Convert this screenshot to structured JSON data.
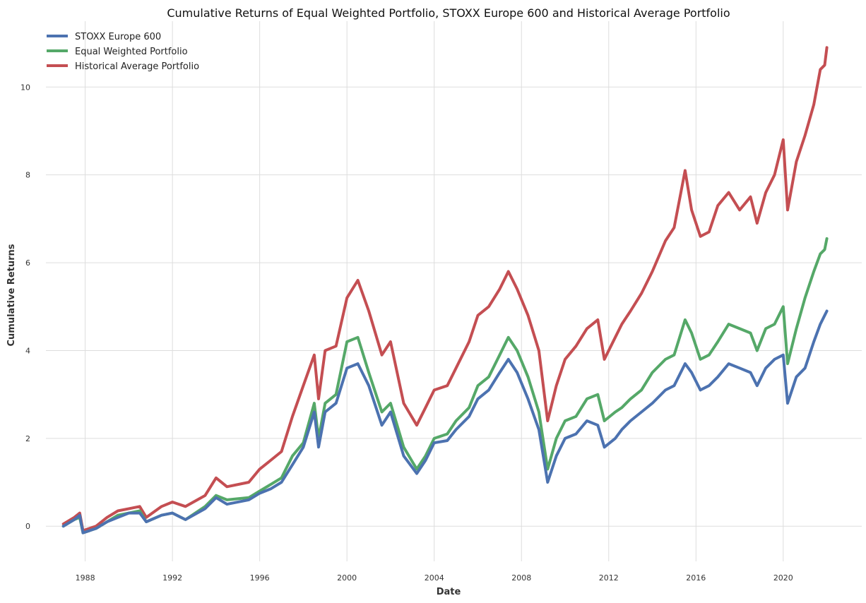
{
  "chart_data": {
    "type": "line",
    "title": "Cumulative Returns of Equal Weighted Portfolio, STOXX Europe 600 and Historical Average Portfolio",
    "xlabel": "Date",
    "ylabel": "Cumulative Returns",
    "xlim": [
      1986.2,
      2023.6
    ],
    "ylim": [
      -0.8,
      11.5
    ],
    "x_ticks": [
      1988,
      1992,
      1996,
      2000,
      2004,
      2008,
      2012,
      2016,
      2020
    ],
    "y_ticks": [
      0,
      2,
      4,
      6,
      8,
      10
    ],
    "grid": true,
    "legend_position": "top-left",
    "series": [
      {
        "name": "STOXX Europe 600",
        "color": "#4c72b0",
        "points": [
          [
            1987.0,
            0.0
          ],
          [
            1987.5,
            0.15
          ],
          [
            1987.75,
            0.25
          ],
          [
            1987.9,
            -0.15
          ],
          [
            1988.5,
            -0.05
          ],
          [
            1989.0,
            0.1
          ],
          [
            1989.5,
            0.2
          ],
          [
            1990.0,
            0.3
          ],
          [
            1990.5,
            0.3
          ],
          [
            1990.8,
            0.1
          ],
          [
            1991.5,
            0.25
          ],
          [
            1992.0,
            0.3
          ],
          [
            1992.6,
            0.15
          ],
          [
            1993.5,
            0.4
          ],
          [
            1994.0,
            0.65
          ],
          [
            1994.5,
            0.5
          ],
          [
            1995.5,
            0.6
          ],
          [
            1996.0,
            0.75
          ],
          [
            1996.5,
            0.85
          ],
          [
            1997.0,
            1.0
          ],
          [
            1997.5,
            1.4
          ],
          [
            1998.0,
            1.8
          ],
          [
            1998.5,
            2.6
          ],
          [
            1998.7,
            1.8
          ],
          [
            1999.0,
            2.6
          ],
          [
            1999.5,
            2.8
          ],
          [
            2000.0,
            3.6
          ],
          [
            2000.5,
            3.7
          ],
          [
            2001.0,
            3.2
          ],
          [
            2001.6,
            2.3
          ],
          [
            2002.0,
            2.6
          ],
          [
            2002.6,
            1.6
          ],
          [
            2003.2,
            1.2
          ],
          [
            2003.6,
            1.5
          ],
          [
            2004.0,
            1.9
          ],
          [
            2004.6,
            1.95
          ],
          [
            2005.0,
            2.2
          ],
          [
            2005.6,
            2.5
          ],
          [
            2006.0,
            2.9
          ],
          [
            2006.5,
            3.1
          ],
          [
            2007.0,
            3.5
          ],
          [
            2007.4,
            3.8
          ],
          [
            2007.8,
            3.5
          ],
          [
            2008.3,
            2.9
          ],
          [
            2008.8,
            2.2
          ],
          [
            2009.2,
            1.0
          ],
          [
            2009.6,
            1.6
          ],
          [
            2010.0,
            2.0
          ],
          [
            2010.5,
            2.1
          ],
          [
            2011.0,
            2.4
          ],
          [
            2011.5,
            2.3
          ],
          [
            2011.8,
            1.8
          ],
          [
            2012.3,
            2.0
          ],
          [
            2012.6,
            2.2
          ],
          [
            2013.0,
            2.4
          ],
          [
            2013.5,
            2.6
          ],
          [
            2014.0,
            2.8
          ],
          [
            2014.6,
            3.1
          ],
          [
            2015.0,
            3.2
          ],
          [
            2015.5,
            3.7
          ],
          [
            2015.8,
            3.5
          ],
          [
            2016.2,
            3.1
          ],
          [
            2016.6,
            3.2
          ],
          [
            2017.0,
            3.4
          ],
          [
            2017.5,
            3.7
          ],
          [
            2018.0,
            3.6
          ],
          [
            2018.5,
            3.5
          ],
          [
            2018.8,
            3.2
          ],
          [
            2019.2,
            3.6
          ],
          [
            2019.6,
            3.8
          ],
          [
            2020.0,
            3.9
          ],
          [
            2020.2,
            2.8
          ],
          [
            2020.6,
            3.4
          ],
          [
            2021.0,
            3.6
          ],
          [
            2021.4,
            4.2
          ],
          [
            2021.7,
            4.6
          ],
          [
            2021.9,
            4.8
          ],
          [
            2022.0,
            4.9
          ]
        ]
      },
      {
        "name": "Equal Weighted Portfolio",
        "color": "#55a868",
        "points": [
          [
            1987.0,
            0.0
          ],
          [
            1987.5,
            0.15
          ],
          [
            1987.75,
            0.2
          ],
          [
            1987.9,
            -0.15
          ],
          [
            1988.5,
            -0.05
          ],
          [
            1989.0,
            0.1
          ],
          [
            1989.5,
            0.25
          ],
          [
            1990.0,
            0.3
          ],
          [
            1990.5,
            0.35
          ],
          [
            1990.8,
            0.1
          ],
          [
            1991.5,
            0.25
          ],
          [
            1992.0,
            0.3
          ],
          [
            1992.6,
            0.15
          ],
          [
            1993.5,
            0.45
          ],
          [
            1994.0,
            0.7
          ],
          [
            1994.5,
            0.6
          ],
          [
            1995.5,
            0.65
          ],
          [
            1996.0,
            0.8
          ],
          [
            1996.5,
            0.95
          ],
          [
            1997.0,
            1.1
          ],
          [
            1997.5,
            1.6
          ],
          [
            1998.0,
            1.9
          ],
          [
            1998.5,
            2.8
          ],
          [
            1998.7,
            2.0
          ],
          [
            1999.0,
            2.8
          ],
          [
            1999.5,
            3.0
          ],
          [
            2000.0,
            4.2
          ],
          [
            2000.5,
            4.3
          ],
          [
            2001.0,
            3.5
          ],
          [
            2001.6,
            2.6
          ],
          [
            2002.0,
            2.8
          ],
          [
            2002.6,
            1.8
          ],
          [
            2003.2,
            1.3
          ],
          [
            2003.6,
            1.6
          ],
          [
            2004.0,
            2.0
          ],
          [
            2004.6,
            2.1
          ],
          [
            2005.0,
            2.4
          ],
          [
            2005.6,
            2.7
          ],
          [
            2006.0,
            3.2
          ],
          [
            2006.5,
            3.4
          ],
          [
            2007.0,
            3.9
          ],
          [
            2007.4,
            4.3
          ],
          [
            2007.8,
            4.0
          ],
          [
            2008.3,
            3.4
          ],
          [
            2008.8,
            2.6
          ],
          [
            2009.2,
            1.3
          ],
          [
            2009.6,
            2.0
          ],
          [
            2010.0,
            2.4
          ],
          [
            2010.5,
            2.5
          ],
          [
            2011.0,
            2.9
          ],
          [
            2011.5,
            3.0
          ],
          [
            2011.8,
            2.4
          ],
          [
            2012.3,
            2.6
          ],
          [
            2012.6,
            2.7
          ],
          [
            2013.0,
            2.9
          ],
          [
            2013.5,
            3.1
          ],
          [
            2014.0,
            3.5
          ],
          [
            2014.6,
            3.8
          ],
          [
            2015.0,
            3.9
          ],
          [
            2015.5,
            4.7
          ],
          [
            2015.8,
            4.4
          ],
          [
            2016.2,
            3.8
          ],
          [
            2016.6,
            3.9
          ],
          [
            2017.0,
            4.2
          ],
          [
            2017.5,
            4.6
          ],
          [
            2018.0,
            4.5
          ],
          [
            2018.5,
            4.4
          ],
          [
            2018.8,
            4.0
          ],
          [
            2019.2,
            4.5
          ],
          [
            2019.6,
            4.6
          ],
          [
            2020.0,
            5.0
          ],
          [
            2020.2,
            3.7
          ],
          [
            2020.6,
            4.5
          ],
          [
            2021.0,
            5.2
          ],
          [
            2021.4,
            5.8
          ],
          [
            2021.7,
            6.2
          ],
          [
            2021.9,
            6.3
          ],
          [
            2022.0,
            6.55
          ]
        ]
      },
      {
        "name": "Historical Average Portfolio",
        "color": "#c44e52",
        "points": [
          [
            1987.0,
            0.05
          ],
          [
            1987.5,
            0.2
          ],
          [
            1987.75,
            0.3
          ],
          [
            1987.9,
            -0.1
          ],
          [
            1988.5,
            0.0
          ],
          [
            1989.0,
            0.2
          ],
          [
            1989.5,
            0.35
          ],
          [
            1990.0,
            0.4
          ],
          [
            1990.5,
            0.45
          ],
          [
            1990.8,
            0.2
          ],
          [
            1991.5,
            0.45
          ],
          [
            1992.0,
            0.55
          ],
          [
            1992.6,
            0.45
          ],
          [
            1993.5,
            0.7
          ],
          [
            1994.0,
            1.1
          ],
          [
            1994.5,
            0.9
          ],
          [
            1995.5,
            1.0
          ],
          [
            1996.0,
            1.3
          ],
          [
            1996.5,
            1.5
          ],
          [
            1997.0,
            1.7
          ],
          [
            1997.5,
            2.5
          ],
          [
            1998.0,
            3.2
          ],
          [
            1998.5,
            3.9
          ],
          [
            1998.7,
            2.9
          ],
          [
            1999.0,
            4.0
          ],
          [
            1999.5,
            4.1
          ],
          [
            2000.0,
            5.2
          ],
          [
            2000.5,
            5.6
          ],
          [
            2001.0,
            4.9
          ],
          [
            2001.6,
            3.9
          ],
          [
            2002.0,
            4.2
          ],
          [
            2002.6,
            2.8
          ],
          [
            2003.2,
            2.3
          ],
          [
            2003.6,
            2.7
          ],
          [
            2004.0,
            3.1
          ],
          [
            2004.6,
            3.2
          ],
          [
            2005.0,
            3.6
          ],
          [
            2005.6,
            4.2
          ],
          [
            2006.0,
            4.8
          ],
          [
            2006.5,
            5.0
          ],
          [
            2007.0,
            5.4
          ],
          [
            2007.4,
            5.8
          ],
          [
            2007.8,
            5.4
          ],
          [
            2008.3,
            4.8
          ],
          [
            2008.8,
            4.0
          ],
          [
            2009.2,
            2.4
          ],
          [
            2009.6,
            3.2
          ],
          [
            2010.0,
            3.8
          ],
          [
            2010.5,
            4.1
          ],
          [
            2011.0,
            4.5
          ],
          [
            2011.5,
            4.7
          ],
          [
            2011.8,
            3.8
          ],
          [
            2012.3,
            4.3
          ],
          [
            2012.6,
            4.6
          ],
          [
            2013.0,
            4.9
          ],
          [
            2013.5,
            5.3
          ],
          [
            2014.0,
            5.8
          ],
          [
            2014.6,
            6.5
          ],
          [
            2015.0,
            6.8
          ],
          [
            2015.5,
            8.1
          ],
          [
            2015.8,
            7.2
          ],
          [
            2016.2,
            6.6
          ],
          [
            2016.6,
            6.7
          ],
          [
            2017.0,
            7.3
          ],
          [
            2017.5,
            7.6
          ],
          [
            2018.0,
            7.2
          ],
          [
            2018.5,
            7.5
          ],
          [
            2018.8,
            6.9
          ],
          [
            2019.2,
            7.6
          ],
          [
            2019.6,
            8.0
          ],
          [
            2020.0,
            8.8
          ],
          [
            2020.2,
            7.2
          ],
          [
            2020.6,
            8.3
          ],
          [
            2021.0,
            8.9
          ],
          [
            2021.4,
            9.6
          ],
          [
            2021.7,
            10.4
          ],
          [
            2021.9,
            10.5
          ],
          [
            2022.0,
            10.9
          ]
        ]
      }
    ]
  }
}
